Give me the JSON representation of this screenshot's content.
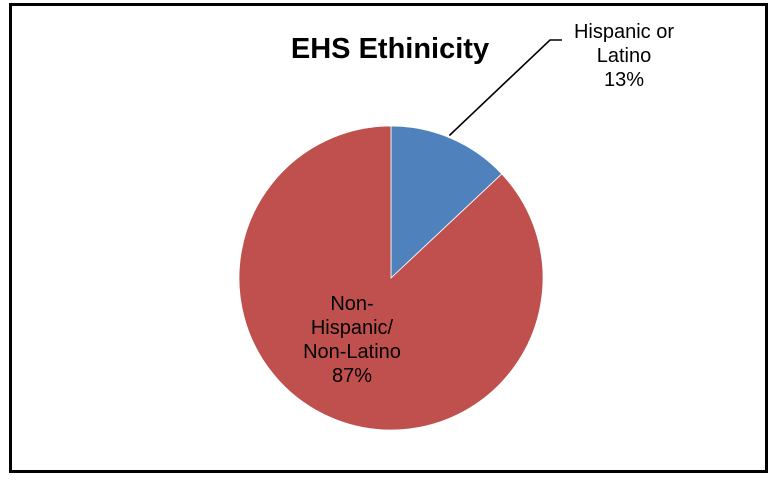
{
  "chart_data": {
    "type": "pie",
    "title": "EHS Ethinicity",
    "slices": [
      {
        "name": "Hispanic or Latino",
        "label_lines": [
          "Hispanic or",
          "Latino"
        ],
        "value": 13,
        "label_value": "13%",
        "color": "#4F81BD"
      },
      {
        "name": "Non-Hispanic/ Non-Latino",
        "label_lines": [
          "Non-",
          "Hispanic/",
          "Non-Latino"
        ],
        "value": 87,
        "label_value": "87%",
        "color": "#C0504D"
      }
    ],
    "start_angle_degrees": 0,
    "direction": "clockwise",
    "legend": "none"
  }
}
